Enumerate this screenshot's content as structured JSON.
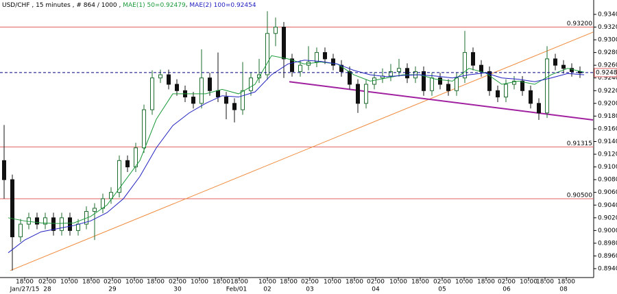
{
  "chart_data": {
    "type": "candlestick",
    "title_parts": [
      {
        "text": "USD/CHF , 15 minutes , # 864 / 1000 ,",
        "color": "#000000"
      },
      {
        "text": "MAE(1) 50=0.92479",
        "color": "#1a9a3a"
      },
      {
        "text": "MAE(2) 100=0.92454",
        "color": "#2020c0"
      }
    ],
    "up_color": "#1e6b2e",
    "down_color": "#111111",
    "candles": {
      "x": [
        6,
        18,
        30,
        42,
        54,
        66,
        78,
        90,
        102,
        114,
        126,
        138,
        150,
        162,
        174,
        186,
        198,
        210,
        222,
        234,
        246,
        258,
        270,
        282,
        294,
        306,
        318,
        330,
        342,
        354,
        366,
        378,
        390,
        402,
        414,
        426,
        438,
        450,
        462,
        474,
        486,
        498,
        510,
        522,
        534,
        546,
        558,
        570,
        582,
        594,
        606,
        618,
        630,
        642,
        654,
        666,
        678,
        690,
        702,
        714,
        726,
        738,
        750,
        762,
        774,
        786,
        798,
        810,
        822,
        834,
        846
      ],
      "open": [
        0.911,
        0.908,
        0.899,
        0.901,
        0.902,
        0.901,
        0.902,
        0.9,
        0.902,
        0.9,
        0.901,
        0.903,
        0.9035,
        0.905,
        0.906,
        0.911,
        0.91,
        0.913,
        0.919,
        0.924,
        0.9245,
        0.923,
        0.922,
        0.921,
        0.92,
        0.924,
        0.922,
        0.921,
        0.92,
        0.919,
        0.922,
        0.924,
        0.9245,
        0.931,
        0.932,
        0.927,
        0.925,
        0.926,
        0.9265,
        0.928,
        0.927,
        0.926,
        0.925,
        0.923,
        0.92,
        0.923,
        0.924,
        0.9243,
        0.925,
        0.9255,
        0.924,
        0.925,
        0.922,
        0.924,
        0.923,
        0.922,
        0.924,
        0.928,
        0.926,
        0.925,
        0.922,
        0.921,
        0.923,
        0.9235,
        0.922,
        0.92,
        0.9185,
        0.927,
        0.926,
        0.9255,
        0.925
      ],
      "high": [
        0.9166,
        0.9088,
        0.9018,
        0.9028,
        0.9028,
        0.9028,
        0.9028,
        0.9028,
        0.9028,
        0.9018,
        0.9038,
        0.9043,
        0.9058,
        0.9068,
        0.9118,
        0.9118,
        0.9138,
        0.9198,
        0.9252,
        0.9253,
        0.9253,
        0.9238,
        0.9228,
        0.9218,
        0.9285,
        0.9248,
        0.928,
        0.9218,
        0.9208,
        0.9265,
        0.9248,
        0.927,
        0.9345,
        0.9335,
        0.9328,
        0.9278,
        0.9268,
        0.929,
        0.9288,
        0.9288,
        0.9278,
        0.9268,
        0.9258,
        0.9238,
        0.9238,
        0.9248,
        0.9255,
        0.9262,
        0.927,
        0.9263,
        0.9258,
        0.9258,
        0.9248,
        0.9248,
        0.9238,
        0.9248,
        0.9314,
        0.9288,
        0.9268,
        0.9258,
        0.9228,
        0.9238,
        0.9243,
        0.9243,
        0.9228,
        0.9208,
        0.929,
        0.9278,
        0.9268,
        0.9263,
        0.9258
      ],
      "low": [
        0.905,
        0.8937,
        0.8982,
        0.9002,
        0.9002,
        0.9002,
        0.8992,
        0.8992,
        0.8992,
        0.8992,
        0.9002,
        0.8985,
        0.9027,
        0.9042,
        0.9052,
        0.9092,
        0.9092,
        0.9122,
        0.9182,
        0.9232,
        0.9222,
        0.9212,
        0.9202,
        0.9192,
        0.9192,
        0.9212,
        0.9202,
        0.9175,
        0.917,
        0.9182,
        0.9212,
        0.9232,
        0.9237,
        0.929,
        0.924,
        0.9242,
        0.9242,
        0.9252,
        0.9257,
        0.9262,
        0.9252,
        0.9242,
        0.9222,
        0.9185,
        0.9192,
        0.9222,
        0.9232,
        0.9235,
        0.9242,
        0.9232,
        0.9232,
        0.9212,
        0.9212,
        0.9222,
        0.9212,
        0.9212,
        0.9232,
        0.9252,
        0.9242,
        0.9212,
        0.9202,
        0.9202,
        0.9222,
        0.9212,
        0.9192,
        0.9174,
        0.9177,
        0.9252,
        0.9247,
        0.9242,
        0.924
      ],
      "close": [
        0.908,
        0.899,
        0.901,
        0.902,
        0.901,
        0.902,
        0.9,
        0.902,
        0.9,
        0.901,
        0.903,
        0.9035,
        0.905,
        0.906,
        0.911,
        0.91,
        0.913,
        0.919,
        0.924,
        0.9245,
        0.923,
        0.922,
        0.921,
        0.92,
        0.924,
        0.922,
        0.921,
        0.92,
        0.919,
        0.922,
        0.924,
        0.9245,
        0.931,
        0.932,
        0.927,
        0.925,
        0.926,
        0.9265,
        0.928,
        0.927,
        0.926,
        0.925,
        0.923,
        0.92,
        0.923,
        0.924,
        0.9243,
        0.925,
        0.9255,
        0.924,
        0.925,
        0.922,
        0.924,
        0.923,
        0.922,
        0.924,
        0.928,
        0.926,
        0.925,
        0.922,
        0.921,
        0.923,
        0.9235,
        0.922,
        0.92,
        0.9185,
        0.927,
        0.926,
        0.9255,
        0.925,
        0.9248
      ]
    },
    "ma_x": [
      12,
      36,
      60,
      84,
      108,
      132,
      156,
      180,
      204,
      228,
      252,
      276,
      300,
      324,
      348,
      372,
      396,
      420,
      444,
      468,
      492,
      516,
      540,
      564,
      588,
      612,
      636,
      660,
      684,
      708,
      732,
      756,
      780,
      804,
      828,
      852
    ],
    "series": [
      {
        "name": "MAE(1) 50",
        "color": "#1a9a3a",
        "values": [
          0.902,
          0.9015,
          0.9012,
          0.9011,
          0.9012,
          0.9022,
          0.904,
          0.9075,
          0.911,
          0.9175,
          0.9215,
          0.9215,
          0.9215,
          0.9222,
          0.9215,
          0.923,
          0.9275,
          0.927,
          0.9262,
          0.9265,
          0.9262,
          0.9245,
          0.9235,
          0.924,
          0.9245,
          0.9245,
          0.9238,
          0.9235,
          0.9255,
          0.9248,
          0.923,
          0.9235,
          0.923,
          0.9245,
          0.9255,
          0.9249
        ]
      },
      {
        "name": "MAE(2) 100",
        "color": "#2020c0",
        "values": [
          0.8965,
          0.8985,
          0.8998,
          0.9003,
          0.9008,
          0.9015,
          0.9028,
          0.905,
          0.9085,
          0.913,
          0.9165,
          0.9185,
          0.92,
          0.9212,
          0.921,
          0.9218,
          0.9245,
          0.9262,
          0.9268,
          0.9266,
          0.9262,
          0.9252,
          0.9245,
          0.9242,
          0.9244,
          0.9245,
          0.9243,
          0.924,
          0.9245,
          0.9248,
          0.924,
          0.9238,
          0.9234,
          0.924,
          0.9247,
          0.9245
        ]
      }
    ],
    "trendlines": [
      {
        "color": "#f08a3c",
        "width": 1,
        "x": [
          15,
          865
        ],
        "y": [
          0.8937,
          0.9312
        ]
      },
      {
        "color": "#a020a0",
        "width": 2,
        "x": [
          422,
          865
        ],
        "y": [
          0.9234,
          0.9174
        ]
      }
    ],
    "levels": [
      {
        "value": 0.932,
        "label": "0.93200",
        "color": "#e06060"
      },
      {
        "value": 0.91315,
        "label": "0.91315",
        "color": "#e06060"
      },
      {
        "value": 0.905,
        "label": "0.90500",
        "color": "#e06060"
      }
    ],
    "current_price": 0.92484,
    "current_color": "#000080",
    "xlim": [
      0,
      866
    ],
    "ylim": [
      0.8926,
      0.93626
    ],
    "yticks": [
      {
        "value": 0.894,
        "label": "0.89400"
      },
      {
        "value": 0.896,
        "label": "0.89600"
      },
      {
        "value": 0.898,
        "label": "0.89800"
      },
      {
        "value": 0.9,
        "label": "0.90000"
      },
      {
        "value": 0.902,
        "label": "0.90200"
      },
      {
        "value": 0.904,
        "label": "0.90400"
      },
      {
        "value": 0.906,
        "label": "0.90600"
      },
      {
        "value": 0.908,
        "label": "0.90800"
      },
      {
        "value": 0.91,
        "label": "0.91000"
      },
      {
        "value": 0.912,
        "label": "0.91200"
      },
      {
        "value": 0.914,
        "label": "0.91400"
      },
      {
        "value": 0.916,
        "label": "0.91600"
      },
      {
        "value": 0.918,
        "label": "0.91800"
      },
      {
        "value": 0.92,
        "label": "0.92000"
      },
      {
        "value": 0.922,
        "label": "0.92200"
      },
      {
        "value": 0.924,
        "label": "0.92400"
      },
      {
        "value": 0.926,
        "label": "0.92600"
      },
      {
        "value": 0.928,
        "label": "0.92800"
      },
      {
        "value": 0.93,
        "label": "0.93000"
      },
      {
        "value": 0.932,
        "label": "0.93200"
      },
      {
        "value": 0.934,
        "label": "0.93400"
      }
    ],
    "xticks": [
      {
        "value": 36,
        "label": "18:00"
      },
      {
        "value": 69,
        "label": "02:00"
      },
      {
        "value": 101,
        "label": "10:00"
      },
      {
        "value": 133,
        "label": "18:00"
      },
      {
        "value": 164,
        "label": "02:00"
      },
      {
        "value": 196,
        "label": "10:00"
      },
      {
        "value": 227,
        "label": "18:00"
      },
      {
        "value": 259,
        "label": "02:00"
      },
      {
        "value": 291,
        "label": "10:00"
      },
      {
        "value": 323,
        "label": "18:00"
      },
      {
        "value": 349,
        "label": "18:00"
      },
      {
        "value": 390,
        "label": "10:00"
      },
      {
        "value": 421,
        "label": "18:00"
      },
      {
        "value": 452,
        "label": "02:00"
      },
      {
        "value": 485,
        "label": "10:00"
      },
      {
        "value": 517,
        "label": "18:00"
      },
      {
        "value": 548,
        "label": "02:00"
      },
      {
        "value": 581,
        "label": "10:00"
      },
      {
        "value": 613,
        "label": "18:00"
      },
      {
        "value": 645,
        "label": "02:00"
      },
      {
        "value": 677,
        "label": "10:00"
      },
      {
        "value": 709,
        "label": "18:00"
      },
      {
        "value": 739,
        "label": "02:00"
      },
      {
        "value": 771,
        "label": "10:00"
      },
      {
        "value": 795,
        "label": "18:00"
      },
      {
        "value": 826,
        "label": "18:00"
      }
    ],
    "xdates": [
      {
        "value": 36,
        "label": "Jan/27/15"
      },
      {
        "value": 69,
        "label": "28"
      },
      {
        "value": 164,
        "label": "29"
      },
      {
        "value": 259,
        "label": "30"
      },
      {
        "value": 345,
        "label": "Feb/01"
      },
      {
        "value": 390,
        "label": "02"
      },
      {
        "value": 452,
        "label": "03"
      },
      {
        "value": 548,
        "label": "04"
      },
      {
        "value": 645,
        "label": "05"
      },
      {
        "value": 739,
        "label": "06"
      },
      {
        "value": 822,
        "label": "08"
      }
    ]
  }
}
